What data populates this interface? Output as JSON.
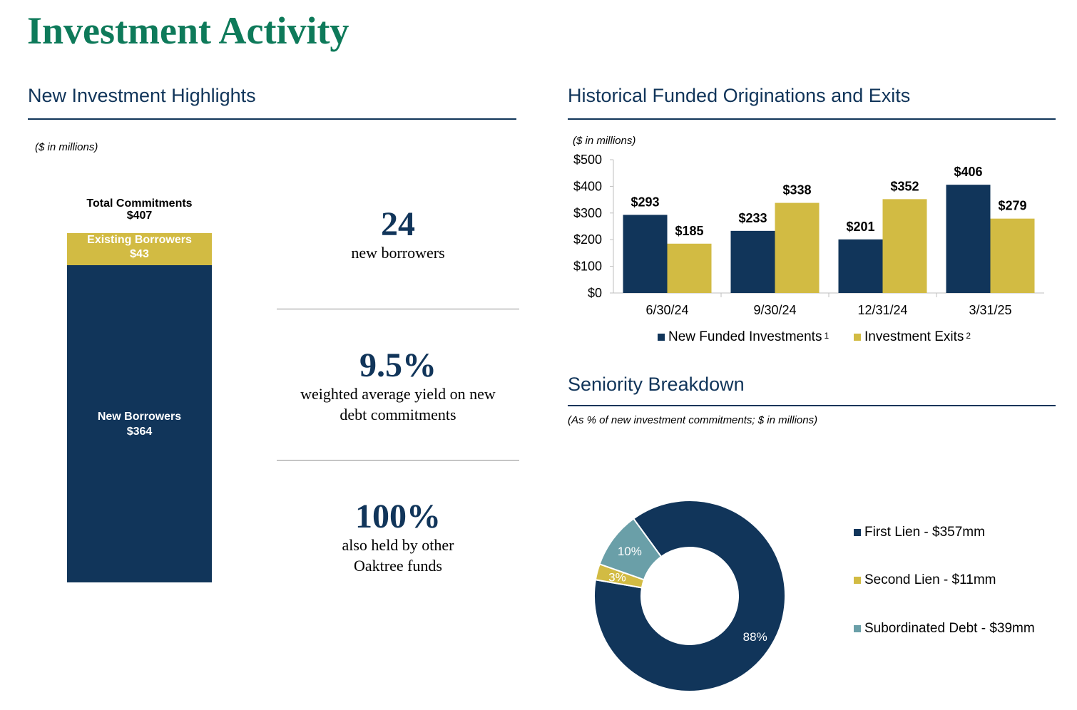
{
  "page": {
    "title": "Investment Activity"
  },
  "highlights_section": {
    "title": "New Investment Highlights",
    "note": "($ in millions)",
    "stack": {
      "total_label": "Total Commitments",
      "total_value": "$407",
      "segments": [
        {
          "label": "Existing Borrowers",
          "value": "$43",
          "amount": 43,
          "color": "#d2bb43"
        },
        {
          "label": "New Borrowers",
          "value": "$364",
          "amount": 364,
          "color": "#11355a"
        }
      ]
    },
    "stats": [
      {
        "value": "24",
        "label_lines": [
          "new borrowers"
        ]
      },
      {
        "value": "9.5%",
        "label_lines": [
          "weighted average yield on new",
          "debt commitments"
        ]
      },
      {
        "value": "100%",
        "label_lines": [
          "also held by other",
          "Oaktree funds"
        ]
      }
    ]
  },
  "originations_section": {
    "title": "Historical Funded Originations and Exits",
    "note": "($ in millions)",
    "legend": [
      {
        "label": "New Funded Investments",
        "sup": "1",
        "color": "#11355a"
      },
      {
        "label": "Investment Exits",
        "sup": "2",
        "color": "#d2bb43"
      }
    ]
  },
  "seniority_section": {
    "title": "Seniority Breakdown",
    "note": "(As % of new investment commitments; $ in millions)",
    "legend": [
      {
        "label": "First Lien - $357mm",
        "color": "#11355a"
      },
      {
        "label": "Second Lien - $11mm",
        "color": "#d2bb43"
      },
      {
        "label": "Subordinated Debt - $39mm",
        "color": "#6a9fa8"
      }
    ]
  },
  "chart_data": [
    {
      "type": "bar",
      "title": "Historical Funded Originations and Exits",
      "categories": [
        "6/30/24",
        "9/30/24",
        "12/31/24",
        "3/31/25"
      ],
      "series": [
        {
          "name": "New Funded Investments",
          "values": [
            293,
            233,
            201,
            406
          ],
          "color": "#11355a"
        },
        {
          "name": "Investment Exits",
          "values": [
            185,
            338,
            352,
            279
          ],
          "color": "#d2bb43"
        }
      ],
      "data_labels": [
        [
          "$293",
          "$233",
          "$201",
          "$406"
        ],
        [
          "$185",
          "$338",
          "$352",
          "$279"
        ]
      ],
      "ylim": [
        0,
        500
      ],
      "y_ticks": [
        0,
        100,
        200,
        300,
        400,
        500
      ],
      "y_tick_labels": [
        "$0",
        "$100",
        "$200",
        "$300",
        "$400",
        "$500"
      ],
      "grid": false,
      "legend_position": "bottom"
    },
    {
      "type": "pie",
      "title": "Seniority Breakdown",
      "donut": true,
      "slices": [
        {
          "name": "First Lien",
          "value": 357,
          "label": "88%",
          "color": "#11355a"
        },
        {
          "name": "Second Lien",
          "value": 11,
          "label": "3%",
          "color": "#d2bb43"
        },
        {
          "name": "Subordinated Debt",
          "value": 39,
          "label": "10%",
          "color": "#6a9fa8"
        }
      ]
    }
  ]
}
